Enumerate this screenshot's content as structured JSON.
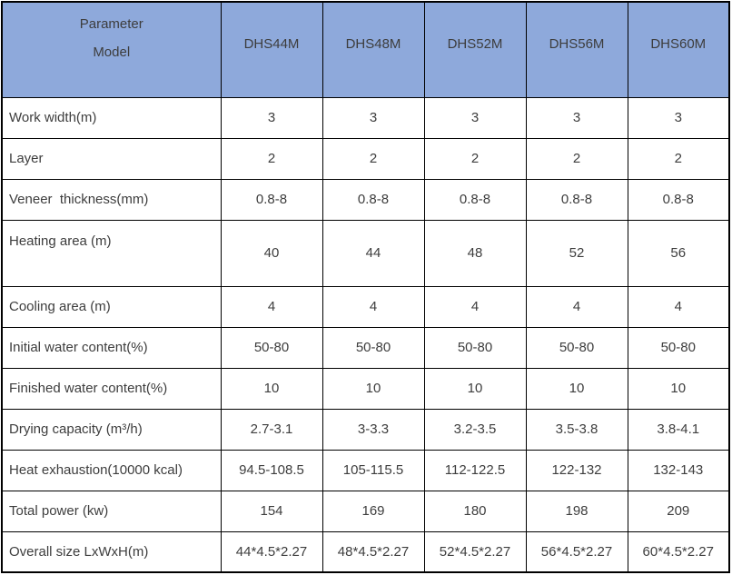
{
  "colors": {
    "header_bg": "#8ea9db",
    "border": "#000000",
    "text": "#3d3d3d",
    "body_bg": "#ffffff"
  },
  "chart_data": {
    "type": "table",
    "corner_header": {
      "line1": "Parameter",
      "line2": "Model"
    },
    "columns": [
      "DHS44M",
      "DHS48M",
      "DHS52M",
      "DHS56M",
      "DHS60M"
    ],
    "rows": [
      {
        "parameter": "Work width(m)",
        "values": [
          "3",
          "3",
          "3",
          "3",
          "3"
        ]
      },
      {
        "parameter": "Layer",
        "values": [
          "2",
          "2",
          "2",
          "2",
          "2"
        ]
      },
      {
        "parameter": "Veneer  thickness(mm)",
        "values": [
          "0.8-8",
          "0.8-8",
          "0.8-8",
          "0.8-8",
          "0.8-8"
        ]
      },
      {
        "parameter": "Heating area (m)",
        "values": [
          "40",
          "44",
          "48",
          "52",
          "56"
        ]
      },
      {
        "parameter": "Cooling area (m)",
        "values": [
          "4",
          "4",
          "4",
          "4",
          "4"
        ]
      },
      {
        "parameter": "Initial water content(%)",
        "values": [
          "50-80",
          "50-80",
          "50-80",
          "50-80",
          "50-80"
        ]
      },
      {
        "parameter": "Finished water content(%)",
        "values": [
          "10",
          "10",
          "10",
          "10",
          "10"
        ]
      },
      {
        "parameter": "Drying capacity (m³/h)",
        "values": [
          "2.7-3.1",
          "3-3.3",
          "3.2-3.5",
          "3.5-3.8",
          "3.8-4.1"
        ]
      },
      {
        "parameter": "Heat exhaustion(10000 kcal)",
        "values": [
          "94.5-108.5",
          "105-115.5",
          "112-122.5",
          "122-132",
          "132-143"
        ]
      },
      {
        "parameter": "Total power (kw)",
        "values": [
          "154",
          "169",
          "180",
          "198",
          "209"
        ]
      },
      {
        "parameter": "Overall size LxWxH(m)",
        "values": [
          "44*4.5*2.27",
          "48*4.5*2.27",
          "52*4.5*2.27",
          "56*4.5*2.27",
          "60*4.5*2.27"
        ]
      }
    ]
  }
}
